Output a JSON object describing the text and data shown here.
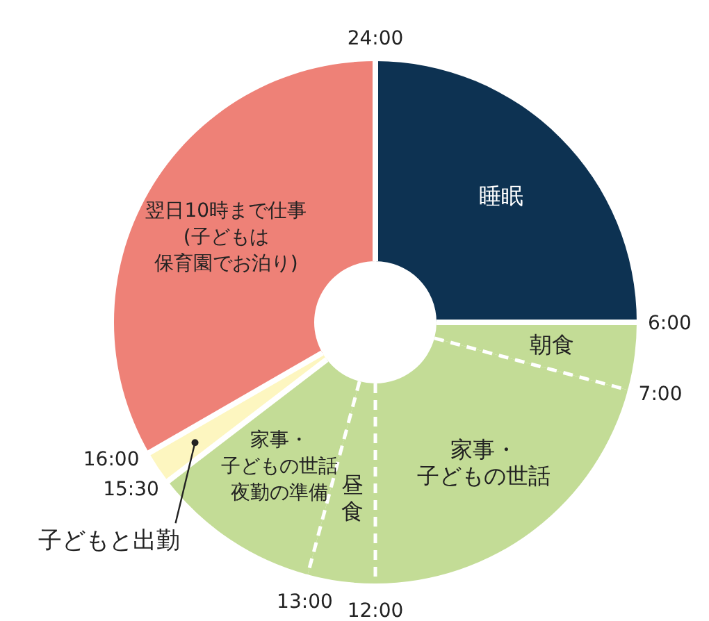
{
  "chart_data": {
    "type": "donut",
    "categories": [
      "睡眠",
      "朝食",
      "家事・子どもの世話",
      "昼食",
      "家事・子どもの世話夜勤の準備",
      "子どもと出勤",
      "翌日10時まで仕事(子どもは保育園でお泊り)"
    ],
    "values": [
      25,
      4.17,
      20.83,
      4.17,
      10.42,
      2.08,
      33.33
    ],
    "colors": [
      "#0d3252",
      "#c3dc96",
      "#c3dc96",
      "#c3dc96",
      "#c3dc96",
      "#fdf6c0",
      "#ee8177"
    ],
    "annotations": [
      "24:00",
      "6:00",
      "7:00",
      "12:00",
      "13:00",
      "15:30",
      "16:00"
    ]
  }
}
